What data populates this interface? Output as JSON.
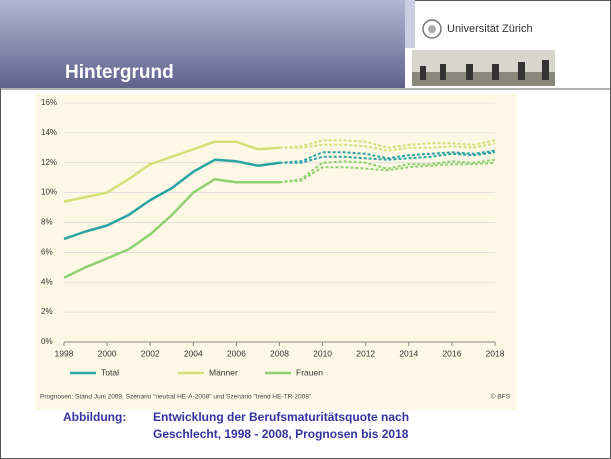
{
  "header": {
    "title": "Hintergrund",
    "logo_text": "Universität Zürich"
  },
  "chart_data": {
    "type": "line",
    "x": [
      1998,
      1999,
      2000,
      2001,
      2002,
      2003,
      2004,
      2005,
      2006,
      2007,
      2008,
      2009,
      2010,
      2011,
      2012,
      2013,
      2014,
      2015,
      2016,
      2017,
      2018
    ],
    "series": [
      {
        "name": "Total",
        "color": "#2aa3a3",
        "values": [
          6.9,
          7.4,
          7.8,
          8.5,
          9.5,
          10.3,
          11.4,
          12.2,
          12.1,
          11.8,
          12.0,
          null,
          null,
          null,
          null,
          null,
          null,
          null,
          null,
          null,
          null
        ],
        "forecast_a": [
          null,
          null,
          null,
          null,
          null,
          null,
          null,
          null,
          null,
          null,
          12.0,
          12.1,
          12.7,
          12.7,
          12.6,
          12.3,
          12.5,
          12.6,
          12.7,
          12.6,
          12.8
        ],
        "forecast_b": [
          null,
          null,
          null,
          null,
          null,
          null,
          null,
          null,
          null,
          null,
          12.0,
          12.0,
          12.4,
          12.4,
          12.3,
          12.2,
          12.3,
          12.4,
          12.6,
          12.5,
          12.7
        ]
      },
      {
        "name": "Männer",
        "color": "#d3e07a",
        "values": [
          9.4,
          9.7,
          10.0,
          10.9,
          11.9,
          12.4,
          12.9,
          13.4,
          13.4,
          12.9,
          13.0,
          null,
          null,
          null,
          null,
          null,
          null,
          null,
          null,
          null,
          null
        ],
        "forecast_a": [
          null,
          null,
          null,
          null,
          null,
          null,
          null,
          null,
          null,
          null,
          13.0,
          13.1,
          13.5,
          13.5,
          13.4,
          13.0,
          13.2,
          13.3,
          13.3,
          13.2,
          13.5
        ],
        "forecast_b": [
          null,
          null,
          null,
          null,
          null,
          null,
          null,
          null,
          null,
          null,
          13.0,
          13.0,
          13.2,
          13.2,
          13.1,
          12.8,
          13.0,
          13.0,
          13.1,
          13.0,
          13.3
        ]
      },
      {
        "name": "Frauen",
        "color": "#8fd16f",
        "values": [
          4.3,
          5.0,
          5.6,
          6.2,
          7.2,
          8.5,
          10.0,
          10.9,
          10.7,
          10.7,
          10.7,
          null,
          null,
          null,
          null,
          null,
          null,
          null,
          null,
          null,
          null
        ],
        "forecast_a": [
          null,
          null,
          null,
          null,
          null,
          null,
          null,
          null,
          null,
          null,
          10.7,
          10.9,
          12.0,
          12.1,
          12.0,
          11.6,
          11.9,
          11.9,
          12.1,
          12.0,
          12.2
        ],
        "forecast_b": [
          null,
          null,
          null,
          null,
          null,
          null,
          null,
          null,
          null,
          null,
          10.7,
          10.8,
          11.7,
          11.7,
          11.6,
          11.5,
          11.7,
          11.8,
          11.9,
          11.9,
          12.0
        ]
      }
    ],
    "xlim": [
      1998,
      2018
    ],
    "xticks": [
      1998,
      2000,
      2002,
      2004,
      2006,
      2008,
      2010,
      2012,
      2014,
      2016,
      2018
    ],
    "ylim": [
      0,
      16
    ],
    "yticks": [
      {
        "value": 0,
        "label": "0%"
      },
      {
        "value": 2,
        "label": "2%"
      },
      {
        "value": 4,
        "label": "4%"
      },
      {
        "value": 6,
        "label": "6%"
      },
      {
        "value": 8,
        "label": "8%"
      },
      {
        "value": 10,
        "label": "10%"
      },
      {
        "value": 12,
        "label": "12%"
      },
      {
        "value": 14,
        "label": "14%"
      },
      {
        "value": 16,
        "label": "16%"
      }
    ],
    "grid": true,
    "note": "Prognosen: Stand Juni 2009, Szenario \"neutral HE-A-2008\" und Szenario \"trend HE-TR-2008\"",
    "source": "© BFS"
  },
  "caption": {
    "label": "Abbildung:",
    "lines": [
      "Entwicklung der Berufsmaturitätsquote nach",
      "Geschlecht, 1998 - 2008, Prognosen bis 2018"
    ]
  }
}
